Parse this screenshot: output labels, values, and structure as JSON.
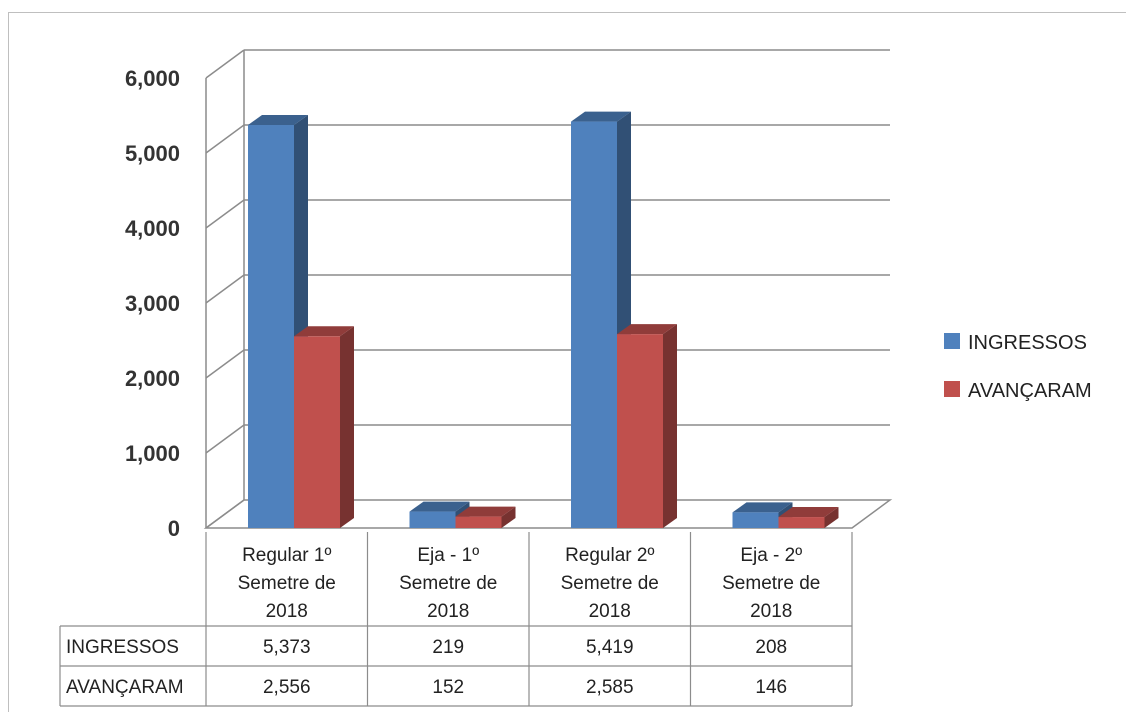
{
  "chart_data": {
    "type": "bar",
    "title": "",
    "xlabel": "",
    "ylabel": "",
    "ylim": [
      0,
      6000
    ],
    "yticks": [
      "0",
      "1,000",
      "2,000",
      "3,000",
      "4,000",
      "5,000",
      "6,000"
    ],
    "grid": true,
    "legend": "right",
    "categories": [
      [
        "Regular 1º",
        "Semetre de",
        "2018"
      ],
      [
        "Eja - 1º",
        "Semetre de",
        "2018"
      ],
      [
        "Regular 2º",
        "Semetre de",
        "2018"
      ],
      [
        "Eja - 2º",
        "Semetre de",
        "2018"
      ]
    ],
    "series": [
      {
        "name": "INGRESSOS",
        "values": [
          5373,
          219,
          5419,
          208
        ],
        "labels": [
          "5,373",
          "219",
          "5,419",
          "208"
        ],
        "color": "#4f81bd"
      },
      {
        "name": "AVANÇARAM",
        "values": [
          2556,
          152,
          2585,
          146
        ],
        "labels": [
          "2,556",
          "152",
          "2,585",
          "146"
        ],
        "color": "#c0504d"
      }
    ]
  }
}
